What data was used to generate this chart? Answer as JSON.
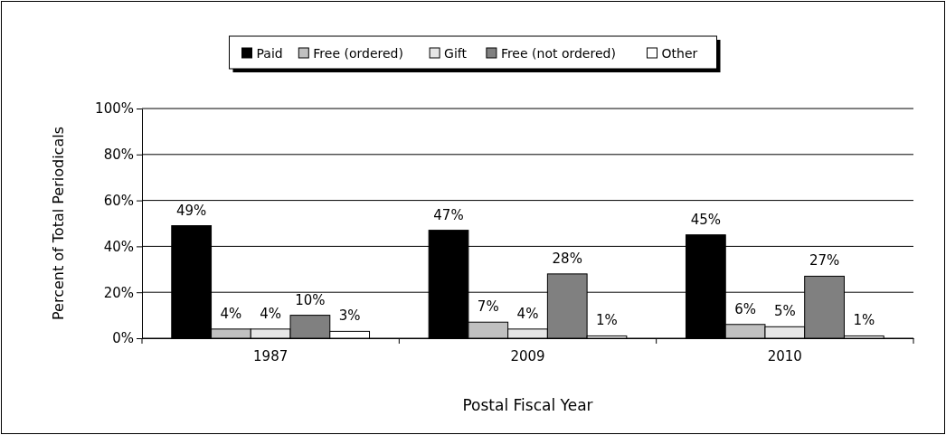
{
  "chart_data": {
    "type": "bar",
    "xlabel": "Postal Fiscal Year",
    "ylabel": "Percent of Total Periodicals",
    "categories": [
      "1987",
      "2009",
      "2010"
    ],
    "series": [
      {
        "name": "Paid",
        "color": "#000000",
        "values": [
          49,
          47,
          45
        ]
      },
      {
        "name": "Free (ordered)",
        "color": "#c0c0c0",
        "values": [
          4,
          7,
          6
        ]
      },
      {
        "name": "Gift",
        "color": "#e6e6e6",
        "values": [
          4,
          4,
          5
        ]
      },
      {
        "name": "Free (not ordered)",
        "color": "#808080",
        "values": [
          10,
          28,
          27
        ]
      },
      {
        "name": "Other",
        "color": "#ffffff",
        "values": [
          3,
          1,
          1
        ]
      }
    ],
    "value_labels": [
      [
        "49%",
        "47%",
        "45%"
      ],
      [
        "4%",
        "7%",
        "6%"
      ],
      [
        "4%",
        "4%",
        "5%"
      ],
      [
        "10%",
        "28%",
        "27%"
      ],
      [
        "3%",
        "1%",
        "1%"
      ]
    ],
    "ylim": [
      0,
      100
    ],
    "yticks": [
      {
        "value": 0,
        "label": "0%"
      },
      {
        "value": 20,
        "label": "20%"
      },
      {
        "value": 40,
        "label": "40%"
      },
      {
        "value": 60,
        "label": "60%"
      },
      {
        "value": 80,
        "label": "80%"
      },
      {
        "value": 100,
        "label": "100%"
      }
    ],
    "grid": "y",
    "legend": "top"
  }
}
